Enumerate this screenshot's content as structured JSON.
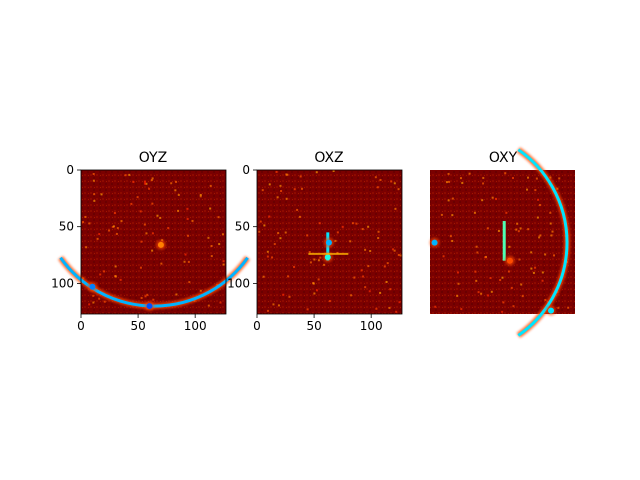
{
  "chart_data": [
    {
      "type": "heatmap",
      "title": "OYZ",
      "xlabel": "",
      "ylabel": "",
      "xlim": [
        0,
        127
      ],
      "ylim": [
        127,
        0
      ],
      "xticks": [
        0,
        50,
        100
      ],
      "yticks": [
        0,
        50,
        100
      ],
      "colormap": "jet",
      "show_axes": true,
      "background": "dark-red",
      "features": [
        {
          "kind": "arc",
          "desc": "bright curved band near bottom",
          "cx": 64,
          "cy": 20,
          "r": 100,
          "from_deg": 35,
          "to_deg": 145,
          "level": 0.3
        },
        {
          "kind": "blob",
          "x": 70,
          "y": 66,
          "level": 0.75
        },
        {
          "kind": "blob",
          "x": 60,
          "y": 120,
          "level": 0.2
        },
        {
          "kind": "blob",
          "x": 10,
          "y": 103,
          "level": 0.25
        }
      ]
    },
    {
      "type": "heatmap",
      "title": "OXZ",
      "xlabel": "",
      "ylabel": "",
      "xlim": [
        0,
        127
      ],
      "ylim": [
        127,
        0
      ],
      "xticks": [
        0,
        50,
        100
      ],
      "yticks": [
        0,
        50,
        100
      ],
      "colormap": "jet",
      "show_axes": true,
      "background": "dark-red",
      "features": [
        {
          "kind": "vline",
          "x": 62,
          "y0": 55,
          "y1": 80,
          "level": 0.35
        },
        {
          "kind": "blob",
          "x": 63,
          "y": 64,
          "level": 0.3
        },
        {
          "kind": "blob",
          "x": 62,
          "y": 77,
          "level": 0.4
        },
        {
          "kind": "hline",
          "x0": 45,
          "x1": 80,
          "y": 74,
          "level": 0.7
        }
      ]
    },
    {
      "type": "heatmap",
      "title": "OXY",
      "xlabel": "",
      "ylabel": "",
      "xlim": [
        0,
        127
      ],
      "ylim": [
        127,
        0
      ],
      "show_axes": false,
      "colormap": "jet",
      "background": "dark-red",
      "features": [
        {
          "kind": "arc",
          "desc": "curved band on right edge",
          "cx": 20,
          "cy": 64,
          "r": 100,
          "from_deg": -55,
          "to_deg": 55,
          "level": 0.35
        },
        {
          "kind": "vline",
          "x": 65,
          "y0": 45,
          "y1": 80,
          "level": 0.45
        },
        {
          "kind": "blob",
          "x": 4,
          "y": 64,
          "level": 0.3
        },
        {
          "kind": "blob",
          "x": 70,
          "y": 80,
          "level": 0.8
        },
        {
          "kind": "blob",
          "x": 106,
          "y": 124,
          "level": 0.35
        }
      ]
    }
  ]
}
